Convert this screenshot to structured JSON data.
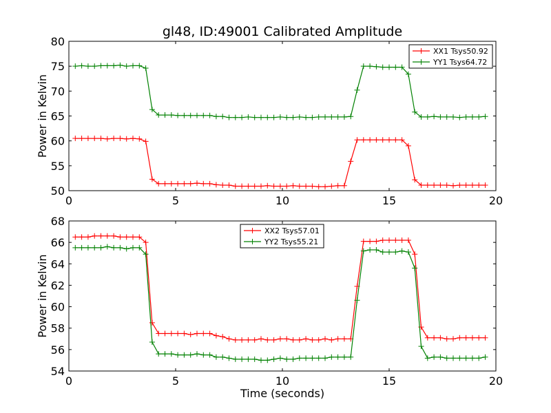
{
  "figure": {
    "title": "gl48, ID:49001 Calibrated Amplitude",
    "xlabel": "Time (seconds)"
  },
  "chart_data": [
    {
      "type": "line",
      "title": "gl48, ID:49001 Calibrated Amplitude",
      "xlabel": "",
      "ylabel": "Power in Kelvin",
      "xlim": [
        0,
        20
      ],
      "ylim": [
        50,
        80
      ],
      "xticks": [
        0,
        5,
        10,
        15,
        20
      ],
      "yticks": [
        50,
        55,
        60,
        65,
        70,
        75,
        80
      ],
      "grid": false,
      "legend_position": "top-right",
      "series": [
        {
          "name": "XX1 Tsys50.92",
          "color": "#ff0000",
          "marker": "plus",
          "x": [
            0.3,
            0.6,
            0.9,
            1.2,
            1.5,
            1.8,
            2.1,
            2.4,
            2.7,
            3.0,
            3.3,
            3.6,
            3.9,
            4.2,
            4.5,
            4.8,
            5.1,
            5.4,
            5.7,
            6.0,
            6.3,
            6.6,
            6.9,
            7.2,
            7.5,
            7.8,
            8.1,
            8.4,
            8.7,
            9.0,
            9.3,
            9.6,
            9.9,
            10.2,
            10.5,
            10.8,
            11.1,
            11.4,
            11.7,
            12.0,
            12.3,
            12.6,
            12.9,
            13.2,
            13.5,
            13.8,
            14.1,
            14.4,
            14.7,
            15.0,
            15.3,
            15.6,
            15.9,
            16.2,
            16.5,
            16.8,
            17.1,
            17.4,
            17.7,
            18.0,
            18.3,
            18.6,
            18.9,
            19.2,
            19.5
          ],
          "y": [
            60.5,
            60.5,
            60.5,
            60.5,
            60.5,
            60.4,
            60.5,
            60.5,
            60.4,
            60.5,
            60.4,
            59.9,
            52.3,
            51.4,
            51.4,
            51.4,
            51.4,
            51.4,
            51.4,
            51.5,
            51.4,
            51.4,
            51.2,
            51.1,
            51.1,
            50.9,
            50.9,
            50.9,
            50.9,
            50.9,
            51.0,
            50.9,
            50.9,
            50.9,
            51.0,
            50.9,
            50.9,
            50.9,
            50.8,
            50.8,
            50.9,
            51.0,
            51.0,
            55.9,
            60.2,
            60.2,
            60.2,
            60.2,
            60.2,
            60.2,
            60.2,
            60.2,
            59.0,
            52.2,
            51.1,
            51.1,
            51.1,
            51.1,
            51.1,
            51.0,
            51.1,
            51.1,
            51.1,
            51.1,
            51.1
          ]
        },
        {
          "name": "YY1 Tsys64.72",
          "color": "#008000",
          "marker": "plus",
          "x": [
            0.3,
            0.6,
            0.9,
            1.2,
            1.5,
            1.8,
            2.1,
            2.4,
            2.7,
            3.0,
            3.3,
            3.6,
            3.9,
            4.2,
            4.5,
            4.8,
            5.1,
            5.4,
            5.7,
            6.0,
            6.3,
            6.6,
            6.9,
            7.2,
            7.5,
            7.8,
            8.1,
            8.4,
            8.7,
            9.0,
            9.3,
            9.6,
            9.9,
            10.2,
            10.5,
            10.8,
            11.1,
            11.4,
            11.7,
            12.0,
            12.3,
            12.6,
            12.9,
            13.2,
            13.5,
            13.8,
            14.1,
            14.4,
            14.7,
            15.0,
            15.3,
            15.6,
            15.9,
            16.2,
            16.5,
            16.8,
            17.1,
            17.4,
            17.7,
            18.0,
            18.3,
            18.6,
            18.9,
            19.2,
            19.5
          ],
          "y": [
            75.0,
            75.1,
            75.0,
            75.0,
            75.1,
            75.1,
            75.1,
            75.2,
            75.0,
            75.1,
            75.1,
            74.6,
            66.3,
            65.2,
            65.2,
            65.2,
            65.1,
            65.1,
            65.1,
            65.1,
            65.1,
            65.1,
            64.9,
            64.9,
            64.7,
            64.7,
            64.7,
            64.8,
            64.7,
            64.7,
            64.7,
            64.7,
            64.8,
            64.7,
            64.7,
            64.8,
            64.7,
            64.7,
            64.8,
            64.8,
            64.8,
            64.8,
            64.8,
            64.9,
            70.2,
            75.0,
            75.0,
            74.9,
            74.8,
            74.8,
            74.8,
            74.8,
            73.4,
            65.8,
            64.8,
            64.8,
            64.9,
            64.8,
            64.8,
            64.8,
            64.7,
            64.8,
            64.8,
            64.8,
            64.9
          ]
        }
      ]
    },
    {
      "type": "line",
      "title": "",
      "xlabel": "Time (seconds)",
      "ylabel": "Power in Kelvin",
      "xlim": [
        0,
        20
      ],
      "ylim": [
        54,
        68
      ],
      "xticks": [
        0,
        5,
        10,
        15,
        20
      ],
      "yticks": [
        54,
        56,
        58,
        60,
        62,
        64,
        66,
        68
      ],
      "grid": false,
      "legend_position": "top-center",
      "series": [
        {
          "name": "XX2 Tsys57.01",
          "color": "#ff0000",
          "marker": "plus",
          "x": [
            0.3,
            0.6,
            0.9,
            1.2,
            1.5,
            1.8,
            2.1,
            2.4,
            2.7,
            3.0,
            3.3,
            3.6,
            3.9,
            4.2,
            4.5,
            4.8,
            5.1,
            5.4,
            5.7,
            6.0,
            6.3,
            6.6,
            6.9,
            7.2,
            7.5,
            7.8,
            8.1,
            8.4,
            8.7,
            9.0,
            9.3,
            9.6,
            9.9,
            10.2,
            10.5,
            10.8,
            11.1,
            11.4,
            11.7,
            12.0,
            12.3,
            12.6,
            12.9,
            13.2,
            13.5,
            13.8,
            14.1,
            14.4,
            14.7,
            15.0,
            15.3,
            15.6,
            15.9,
            16.2,
            16.5,
            16.8,
            17.1,
            17.4,
            17.7,
            18.0,
            18.3,
            18.6,
            18.9,
            19.2,
            19.5
          ],
          "y": [
            66.5,
            66.5,
            66.5,
            66.6,
            66.6,
            66.6,
            66.6,
            66.5,
            66.5,
            66.5,
            66.5,
            66.0,
            58.5,
            57.5,
            57.5,
            57.5,
            57.5,
            57.5,
            57.4,
            57.5,
            57.5,
            57.5,
            57.3,
            57.2,
            57.0,
            56.9,
            56.9,
            56.9,
            56.9,
            57.0,
            56.9,
            56.9,
            57.0,
            57.0,
            56.9,
            56.9,
            57.0,
            56.9,
            56.9,
            57.0,
            56.9,
            57.0,
            57.0,
            57.0,
            61.9,
            66.1,
            66.1,
            66.1,
            66.2,
            66.2,
            66.2,
            66.2,
            66.2,
            64.9,
            58.1,
            57.1,
            57.1,
            57.1,
            57.0,
            57.0,
            57.1,
            57.1,
            57.1,
            57.1,
            57.1
          ]
        },
        {
          "name": "YY2 Tsys55.21",
          "color": "#008000",
          "marker": "plus",
          "x": [
            0.3,
            0.6,
            0.9,
            1.2,
            1.5,
            1.8,
            2.1,
            2.4,
            2.7,
            3.0,
            3.3,
            3.6,
            3.9,
            4.2,
            4.5,
            4.8,
            5.1,
            5.4,
            5.7,
            6.0,
            6.3,
            6.6,
            6.9,
            7.2,
            7.5,
            7.8,
            8.1,
            8.4,
            8.7,
            9.0,
            9.3,
            9.6,
            9.9,
            10.2,
            10.5,
            10.8,
            11.1,
            11.4,
            11.7,
            12.0,
            12.3,
            12.6,
            12.9,
            13.2,
            13.5,
            13.8,
            14.1,
            14.4,
            14.7,
            15.0,
            15.3,
            15.6,
            15.9,
            16.2,
            16.5,
            16.8,
            17.1,
            17.4,
            17.7,
            18.0,
            18.3,
            18.6,
            18.9,
            19.2,
            19.5
          ],
          "y": [
            65.5,
            65.5,
            65.5,
            65.5,
            65.5,
            65.6,
            65.5,
            65.5,
            65.4,
            65.5,
            65.5,
            64.9,
            56.7,
            55.6,
            55.6,
            55.6,
            55.5,
            55.5,
            55.5,
            55.6,
            55.5,
            55.5,
            55.3,
            55.3,
            55.2,
            55.1,
            55.1,
            55.1,
            55.1,
            55.0,
            55.0,
            55.1,
            55.2,
            55.1,
            55.1,
            55.2,
            55.2,
            55.2,
            55.2,
            55.2,
            55.3,
            55.3,
            55.3,
            55.3,
            60.6,
            65.2,
            65.3,
            65.3,
            65.1,
            65.1,
            65.1,
            65.2,
            65.1,
            63.6,
            56.3,
            55.2,
            55.3,
            55.3,
            55.2,
            55.2,
            55.2,
            55.2,
            55.2,
            55.2,
            55.3
          ]
        }
      ]
    }
  ]
}
